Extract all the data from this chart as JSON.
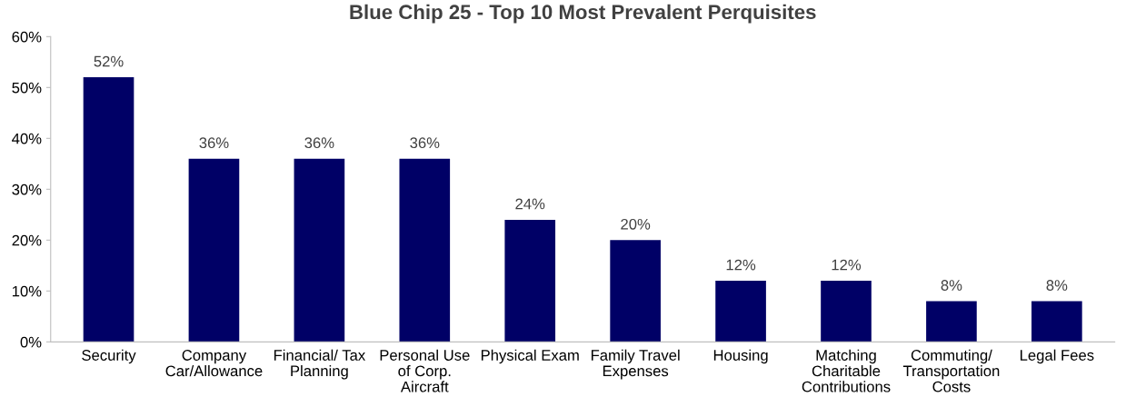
{
  "chart_data": {
    "type": "bar",
    "title": "Blue Chip 25 - Top 10 Most Prevalent Perquisites",
    "categories": [
      "Security",
      "Company\nCar/Allowance",
      "Financial/ Tax\nPlanning",
      "Personal Use\nof Corp.\nAircraft",
      "Physical Exam",
      "Family Travel\nExpenses",
      "Housing",
      "Matching\nCharitable\nContributions",
      "Commuting/\nTransportation\nCosts",
      "Legal Fees"
    ],
    "values": [
      52,
      36,
      36,
      36,
      24,
      20,
      12,
      12,
      8,
      8
    ],
    "value_labels": [
      "52%",
      "36%",
      "36%",
      "36%",
      "24%",
      "20%",
      "12%",
      "12%",
      "8%",
      "8%"
    ],
    "color": "#000066",
    "ylim": [
      0,
      60
    ],
    "yticks": [
      {
        "value": 0,
        "label": "0%"
      },
      {
        "value": 10,
        "label": "10%"
      },
      {
        "value": 20,
        "label": "20%"
      },
      {
        "value": 30,
        "label": "30%"
      },
      {
        "value": 40,
        "label": "40%"
      },
      {
        "value": 50,
        "label": "50%"
      },
      {
        "value": 60,
        "label": "60%"
      }
    ],
    "grid": false,
    "legend": false
  }
}
